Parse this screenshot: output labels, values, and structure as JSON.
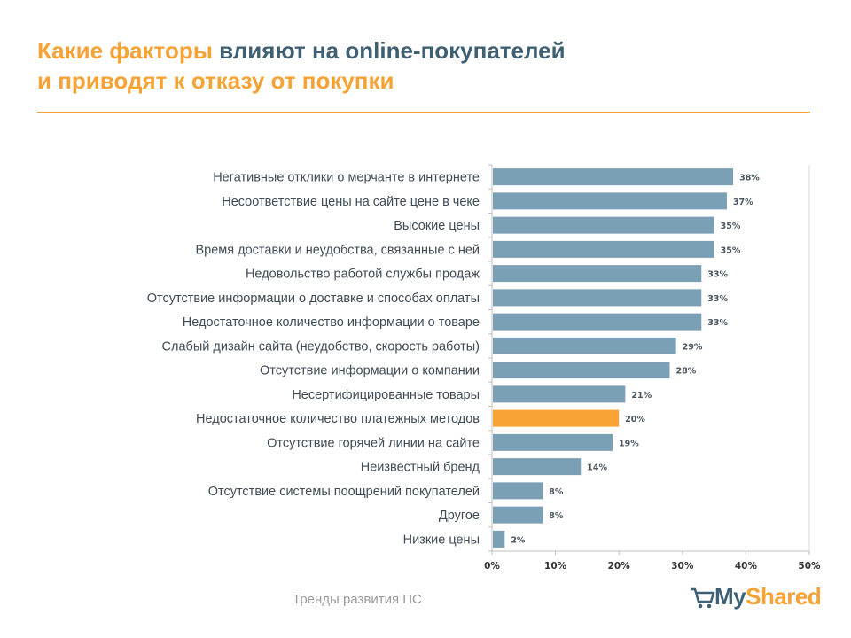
{
  "title": {
    "part1": "Какие факторы",
    "part2": " влияют на online-покупателей",
    "line2": "и приводят к отказу от покупки"
  },
  "footer": "Тренды развития ПС",
  "logo": {
    "part1": "My",
    "part2": "Shared"
  },
  "colors": {
    "accent": "#f7a234",
    "bar": "#7b9fb5",
    "title_blue": "#3f5f73"
  },
  "chart_data": {
    "type": "bar",
    "orientation": "horizontal",
    "categories": [
      "Негативные отклики о мерчанте в интернете",
      "Несоответствие цены на сайте цене в чеке",
      "Высокие цены",
      "Время доставки и неудобства, связанные с ней",
      "Недовольство работой службы продаж",
      "Отсутствие информации о доставке и способах оплаты",
      "Недостаточное количество информации о товаре",
      "Слабый дизайн сайта (неудобство, скорость работы)",
      "Отсутствие информации о компании",
      "Несертифицированные товары",
      "Недостаточное количество платежных методов",
      "Отсутствие горячей линии на сайте",
      "Неизвестный бренд",
      "Отсутствие системы поощрений покупателей",
      "Другое",
      "Низкие цены"
    ],
    "values": [
      38,
      37,
      35,
      35,
      33,
      33,
      33,
      29,
      28,
      21,
      20,
      19,
      14,
      8,
      8,
      2
    ],
    "value_labels": [
      "38%",
      "37%",
      "35%",
      "35%",
      "33%",
      "33%",
      "33%",
      "29%",
      "28%",
      "21%",
      "20%",
      "19%",
      "14%",
      "8%",
      "8%",
      "2%"
    ],
    "highlight_index": 10,
    "xlim": [
      0,
      50
    ],
    "xticks": [
      0,
      10,
      20,
      30,
      40,
      50
    ],
    "xtick_labels": [
      "0%",
      "10%",
      "20%",
      "30%",
      "40%",
      "50%"
    ],
    "grid": false,
    "legend": "none"
  }
}
